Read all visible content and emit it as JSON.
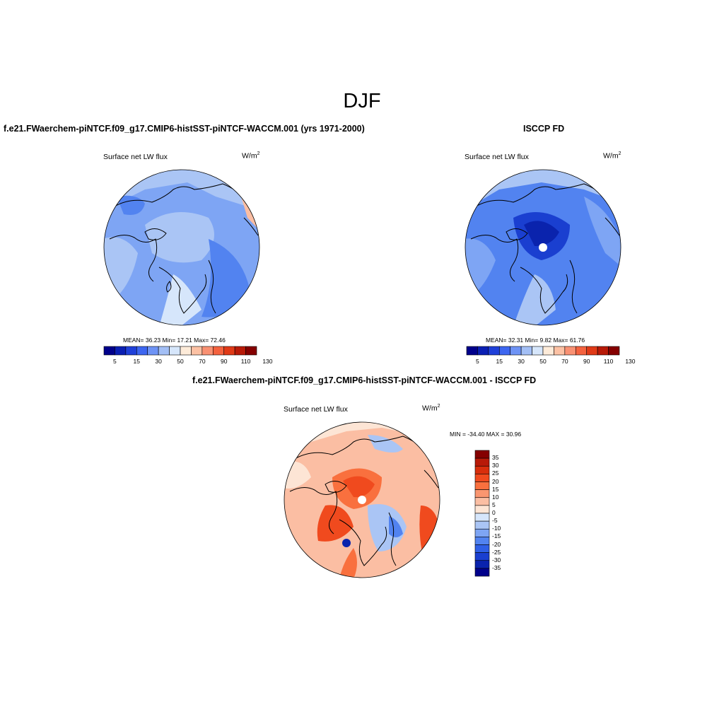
{
  "title": "DJF",
  "panels": [
    {
      "id": "model",
      "title": "f.e21.FWaerchem-piNTCF.f09_g17.CMIP6-histSST-piNTCF-WACCM.001 (yrs 1971-2000)",
      "variable": "Surface net LW flux",
      "units_base": "W/m",
      "units_exp": "2",
      "stats_text": "MEAN=  36.23  Min=  17.21  Max=  72.46",
      "mean": 36.23,
      "min": 17.21,
      "max": 72.46
    },
    {
      "id": "obs",
      "title": "ISCCP FD",
      "variable": "Surface net LW flux",
      "units_base": "W/m",
      "units_exp": "2",
      "stats_text": "MEAN=  32.31  Min=   9.82  Max=  61.76",
      "mean": 32.31,
      "min": 9.82,
      "max": 61.76
    },
    {
      "id": "diff",
      "title": "f.e21.FWaerchem-piNTCF.f09_g17.CMIP6-histSST-piNTCF-WACCM.001 - ISCCP FD",
      "variable": "Surface net LW flux",
      "units_base": "W/m",
      "units_exp": "2",
      "stats_text": "MIN = -34.40 MAX =  30.96",
      "min": -34.4,
      "max": 30.96
    }
  ],
  "colorbar_abs": {
    "tick_labels": [
      "5",
      "15",
      "30",
      "50",
      "70",
      "90",
      "110",
      "130"
    ],
    "colors": [
      "#00008b",
      "#0a1fb3",
      "#1f40d9",
      "#3d66f0",
      "#6e93f5",
      "#a3bff5",
      "#d6e6fb",
      "#fdebd9",
      "#fcc1a4",
      "#f99173",
      "#f4623f",
      "#e03a17",
      "#b81a08",
      "#850000"
    ]
  },
  "colorbar_diff": {
    "tick_labels": [
      "35",
      "30",
      "25",
      "20",
      "15",
      "10",
      "5",
      "0",
      "-5",
      "-10",
      "-15",
      "-20",
      "-25",
      "-30",
      "-35"
    ],
    "colors": [
      "#850000",
      "#b81a08",
      "#d82e0c",
      "#f04a1e",
      "#f9703e",
      "#fa9670",
      "#fbbea3",
      "#fde5d5",
      "#d6e6fb",
      "#aac5f5",
      "#7ea5f4",
      "#5283f0",
      "#2f5fe6",
      "#1a3fd0",
      "#0a23ad",
      "#00008b"
    ]
  }
}
